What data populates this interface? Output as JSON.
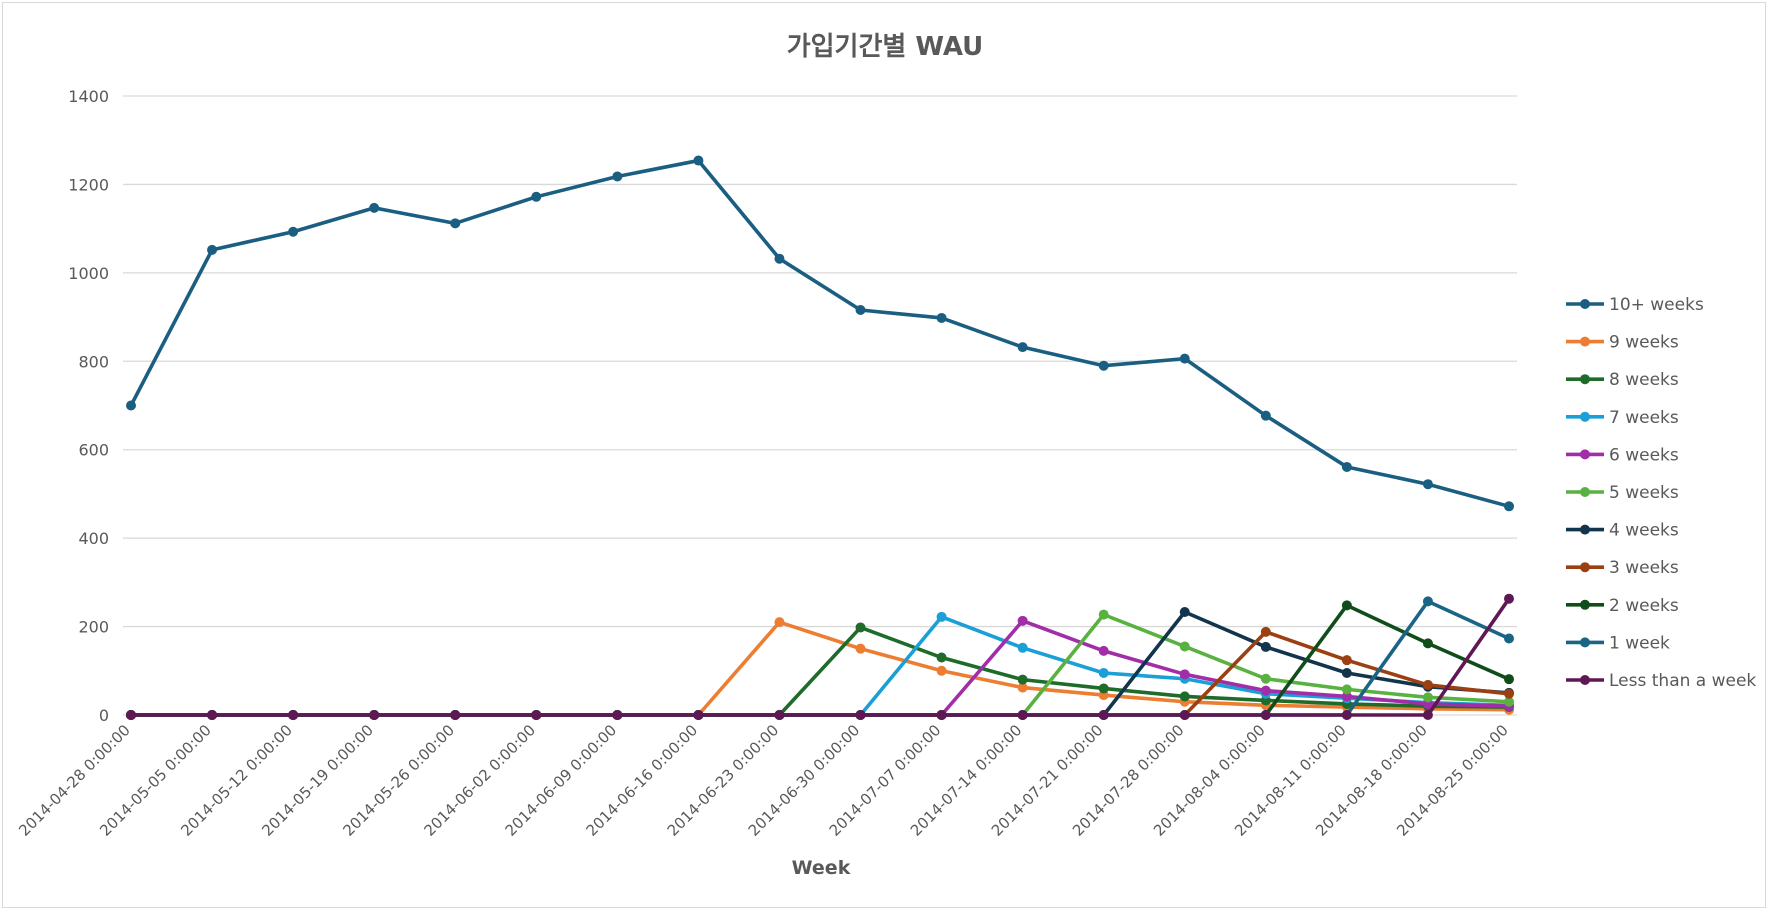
{
  "chart_data": {
    "type": "line",
    "title": "가입기간별 WAU",
    "xlabel": "Week",
    "ylabel": "",
    "ylim": [
      0,
      1400
    ],
    "yticks": [
      0,
      200,
      400,
      600,
      800,
      1000,
      1200,
      1400
    ],
    "grid": true,
    "legend_position": "right",
    "categories": [
      "2014-04-28 0:00:00",
      "2014-05-05 0:00:00",
      "2014-05-12 0:00:00",
      "2014-05-19 0:00:00",
      "2014-05-26 0:00:00",
      "2014-06-02 0:00:00",
      "2014-06-09 0:00:00",
      "2014-06-16 0:00:00",
      "2014-06-23 0:00:00",
      "2014-06-30 0:00:00",
      "2014-07-07 0:00:00",
      "2014-07-14 0:00:00",
      "2014-07-21 0:00:00",
      "2014-07-28 0:00:00",
      "2014-08-04 0:00:00",
      "2014-08-11 0:00:00",
      "2014-08-18 0:00:00",
      "2014-08-25 0:00:00"
    ],
    "series": [
      {
        "name": "10+ weeks",
        "color": "#1a5e82",
        "values": [
          700,
          1052,
          1093,
          1147,
          1112,
          1172,
          1218,
          1254,
          1032,
          916,
          898,
          832,
          790,
          806,
          677,
          561,
          522,
          472
        ]
      },
      {
        "name": "9 weeks",
        "color": "#ed7d31",
        "values": [
          0,
          0,
          0,
          0,
          0,
          0,
          0,
          0,
          210,
          150,
          100,
          62,
          45,
          30,
          22,
          18,
          14,
          12
        ]
      },
      {
        "name": "8 weeks",
        "color": "#1e6b2a",
        "values": [
          0,
          0,
          0,
          0,
          0,
          0,
          0,
          0,
          0,
          198,
          130,
          80,
          60,
          42,
          33,
          25,
          20,
          18
        ]
      },
      {
        "name": "7 weeks",
        "color": "#1b9fd7",
        "values": [
          0,
          0,
          0,
          0,
          0,
          0,
          0,
          0,
          0,
          0,
          222,
          152,
          95,
          82,
          48,
          38,
          28,
          22
        ]
      },
      {
        "name": "6 weeks",
        "color": "#a12ea8",
        "values": [
          0,
          0,
          0,
          0,
          0,
          0,
          0,
          0,
          0,
          0,
          0,
          213,
          145,
          92,
          55,
          42,
          25,
          20
        ]
      },
      {
        "name": "5 weeks",
        "color": "#57b23f",
        "values": [
          0,
          0,
          0,
          0,
          0,
          0,
          0,
          0,
          0,
          0,
          0,
          0,
          227,
          155,
          82,
          58,
          40,
          30
        ]
      },
      {
        "name": "4 weeks",
        "color": "#12344d",
        "values": [
          0,
          0,
          0,
          0,
          0,
          0,
          0,
          0,
          0,
          0,
          0,
          0,
          0,
          233,
          154,
          95,
          64,
          50
        ]
      },
      {
        "name": "3 weeks",
        "color": "#9c3f12",
        "values": [
          0,
          0,
          0,
          0,
          0,
          0,
          0,
          0,
          0,
          0,
          0,
          0,
          0,
          0,
          188,
          124,
          68,
          48
        ]
      },
      {
        "name": "2 weeks",
        "color": "#114d1a",
        "values": [
          0,
          0,
          0,
          0,
          0,
          0,
          0,
          0,
          0,
          0,
          0,
          0,
          0,
          0,
          0,
          248,
          162,
          81
        ]
      },
      {
        "name": "1 week",
        "color": "#1a6485",
        "values": [
          0,
          0,
          0,
          0,
          0,
          0,
          0,
          0,
          0,
          0,
          0,
          0,
          0,
          0,
          0,
          0,
          257,
          173
        ]
      },
      {
        "name": "Less than a week",
        "color": "#5e1954",
        "values": [
          0,
          0,
          0,
          0,
          0,
          0,
          0,
          0,
          0,
          0,
          0,
          0,
          0,
          0,
          0,
          0,
          0,
          263
        ]
      }
    ]
  }
}
